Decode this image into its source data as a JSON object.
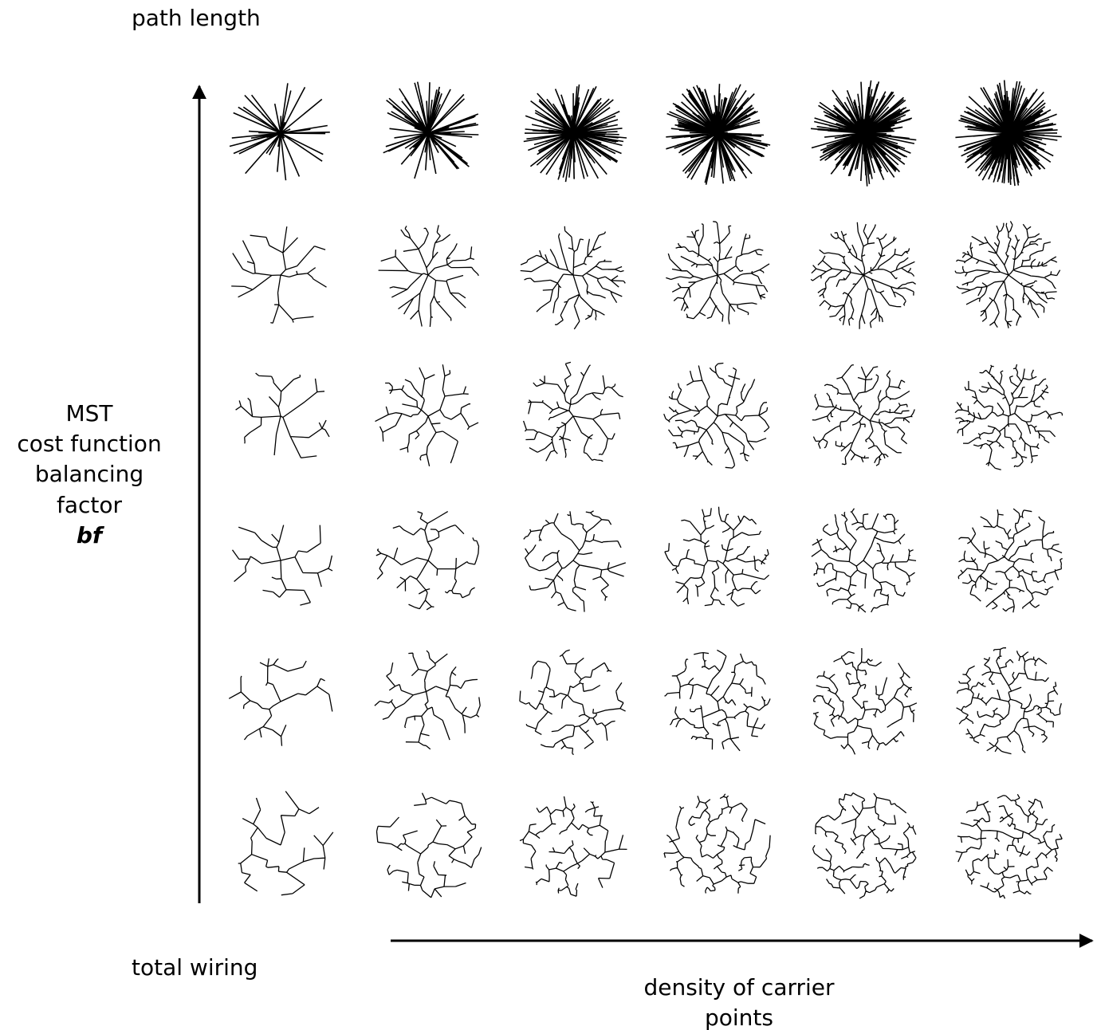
{
  "y_axis": {
    "top_label": "path length",
    "bottom_label": "total wiring",
    "title_lines": [
      "MST",
      "cost function",
      "balancing",
      "factor"
    ],
    "symbol": "bf"
  },
  "x_axis": {
    "label_lines": [
      "density of carrier",
      "points"
    ]
  }
}
